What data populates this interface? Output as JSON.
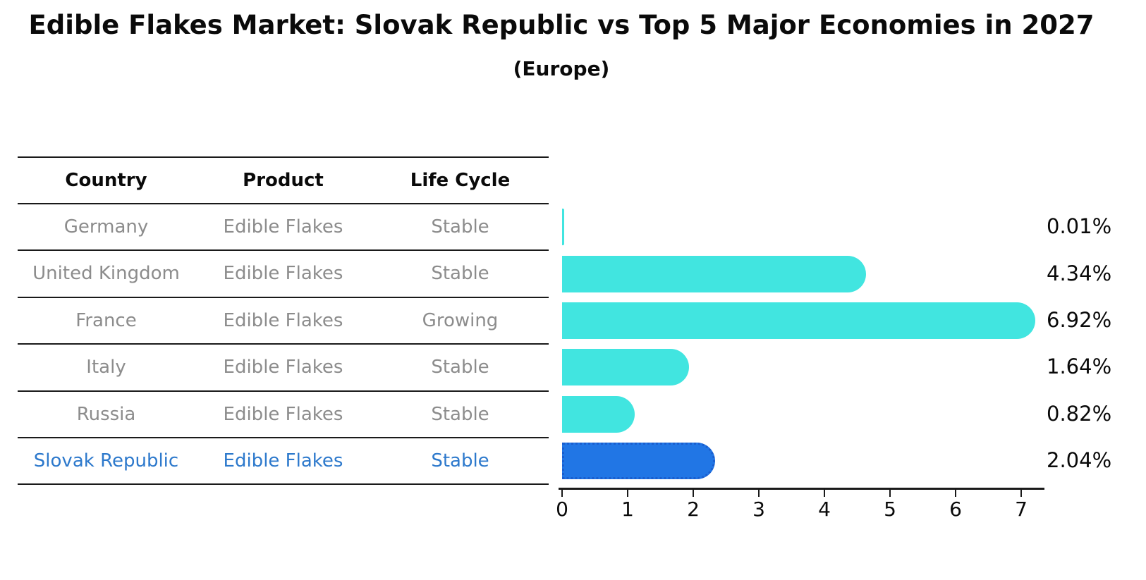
{
  "title": "Edible Flakes Market: Slovak Republic vs Top 5 Major Economies in 2027",
  "subtitle": "(Europe)",
  "table": {
    "headers": [
      "Country",
      "Product",
      "Life Cycle"
    ],
    "rows": [
      {
        "country": "Germany",
        "product": "Edible Flakes",
        "life_cycle": "Stable"
      },
      {
        "country": "United Kingdom",
        "product": "Edible Flakes",
        "life_cycle": "Stable"
      },
      {
        "country": "France",
        "product": "Edible Flakes",
        "life_cycle": "Growing"
      },
      {
        "country": "Italy",
        "product": "Edible Flakes",
        "life_cycle": "Stable"
      },
      {
        "country": "Russia",
        "product": "Edible Flakes",
        "life_cycle": "Stable"
      },
      {
        "country": "Slovak Republic",
        "product": "Edible Flakes",
        "life_cycle": "Stable"
      }
    ],
    "highlight_row_index": 5
  },
  "chart_data": {
    "type": "bar",
    "orientation": "horizontal",
    "title": "Edible Flakes Market: Slovak Republic vs Top 5 Major Economies in 2027",
    "subtitle": "(Europe)",
    "categories": [
      "Germany",
      "United Kingdom",
      "France",
      "Italy",
      "Russia",
      "Slovak Republic"
    ],
    "values": [
      0.01,
      4.34,
      6.92,
      1.64,
      0.82,
      2.04
    ],
    "value_labels": [
      "0.01%",
      "4.34%",
      "6.92%",
      "1.64%",
      "0.82%",
      "2.04%"
    ],
    "xlabel": "",
    "ylabel": "",
    "xlim": [
      0,
      7.3
    ],
    "xticks": [
      0,
      1,
      2,
      3,
      4,
      5,
      6,
      7
    ],
    "grid": false,
    "legend": false,
    "highlight_index": 5,
    "highlight_style": "dotted-border"
  },
  "colors": {
    "bar_fill": "#41e5e0",
    "highlight_bar_fill": "#2176e5",
    "highlight_bar_border": "#1a5ecf",
    "highlight_text": "#2d79cc",
    "table_text": "#8c8c8c",
    "axis": "#1a1a1a",
    "heading_text": "#0a0a0a",
    "background": "#ffffff"
  }
}
